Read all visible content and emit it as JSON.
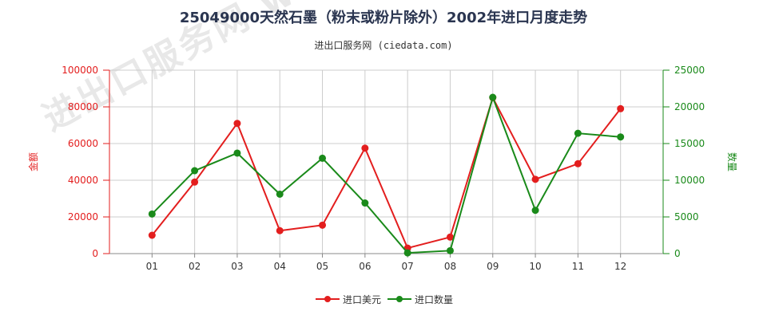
{
  "chart_data": {
    "type": "line",
    "title": "25049000天然石墨（粉末或粉片除外）2002年进口月度走势",
    "subtitle": "进出口服务网 (ciedata.com)",
    "categories": [
      "01",
      "02",
      "03",
      "04",
      "05",
      "06",
      "07",
      "08",
      "09",
      "10",
      "11",
      "12"
    ],
    "left_axis": {
      "label": "金额",
      "ylim": [
        0,
        100000
      ],
      "ticks": [
        "0",
        "20000",
        "40000",
        "60000",
        "80000",
        "100000"
      ],
      "color": "#e31e1e"
    },
    "right_axis": {
      "label": "数量",
      "ylim": [
        0,
        25000
      ],
      "ticks": [
        "0",
        "5000",
        "10000",
        "15000",
        "20000",
        "25000"
      ],
      "color": "#1a8a1a"
    },
    "series": [
      {
        "name": "进口美元",
        "axis": "left",
        "color": "#e31e1e",
        "values": [
          10000,
          39000,
          71000,
          12500,
          15500,
          57500,
          3000,
          9000,
          85000,
          40500,
          49000,
          79000
        ]
      },
      {
        "name": "进口数量",
        "axis": "right",
        "color": "#1a8a1a",
        "values": [
          5400,
          11300,
          13700,
          8100,
          13000,
          6900,
          100,
          400,
          21300,
          5900,
          16400,
          15900
        ]
      }
    ],
    "grid": true,
    "legend_position": "bottom-center"
  },
  "watermark": "进出口服务网 www.ciedata.com"
}
